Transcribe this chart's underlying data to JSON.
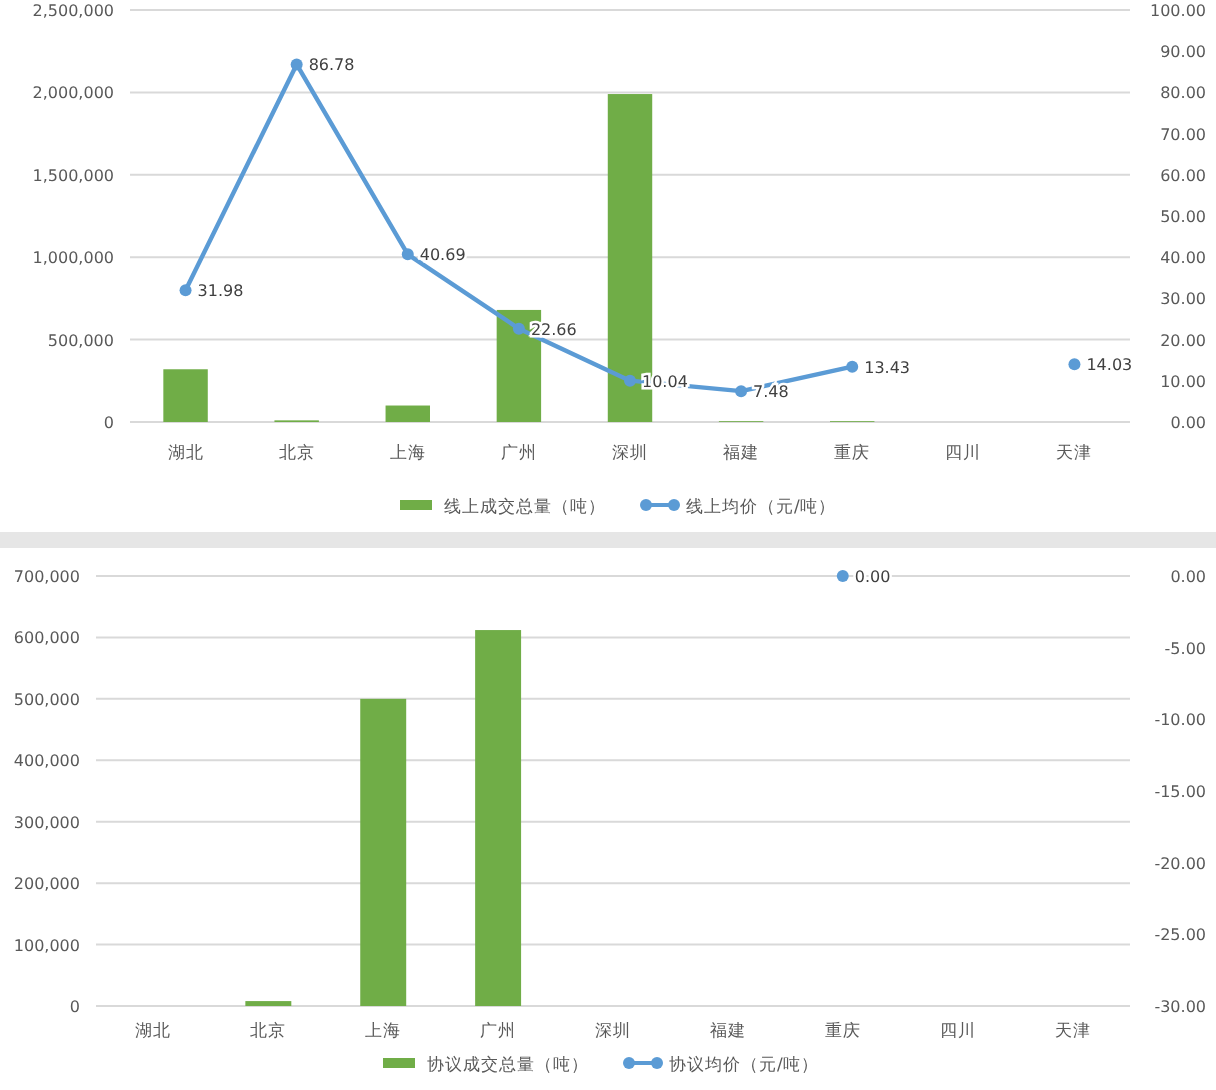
{
  "chart_data": [
    {
      "type": "bar",
      "categories": [
        "湖北",
        "北京",
        "上海",
        "广州",
        "深圳",
        "福建",
        "重庆",
        "四川",
        "天津"
      ],
      "series": [
        {
          "name": "线上成交总量（吨）",
          "color": "#70ad47",
          "values": [
            320000,
            10000,
            100000,
            680000,
            1990000,
            5000,
            5000,
            0,
            0
          ]
        },
        {
          "name": "线上均价（元/吨）",
          "type": "line",
          "axis": "y2",
          "color": "#5b9bd5",
          "values": [
            31.98,
            86.78,
            40.69,
            22.66,
            10.04,
            7.48,
            13.43,
            null,
            14.03
          ],
          "value_labels": [
            "31.98",
            "86.78",
            "40.69",
            "22.66",
            "10.04",
            "7.48",
            "13.43",
            null,
            "14.03"
          ]
        }
      ],
      "ylim": [
        0,
        2500000
      ],
      "yticks": [
        {
          "value": 0,
          "label": "0"
        },
        {
          "value": 500000,
          "label": "500,000"
        },
        {
          "value": 1000000,
          "label": "1,000,000"
        },
        {
          "value": 1500000,
          "label": "1,500,000"
        },
        {
          "value": 2000000,
          "label": "2,000,000"
        },
        {
          "value": 2500000,
          "label": "2,500,000"
        }
      ],
      "y2lim": [
        0,
        100
      ],
      "y2ticks": [
        {
          "value": 0,
          "label": "0.00"
        },
        {
          "value": 10,
          "label": "10.00"
        },
        {
          "value": 20,
          "label": "20.00"
        },
        {
          "value": 30,
          "label": "30.00"
        },
        {
          "value": 40,
          "label": "40.00"
        },
        {
          "value": 50,
          "label": "50.00"
        },
        {
          "value": 60,
          "label": "60.00"
        },
        {
          "value": 70,
          "label": "70.00"
        },
        {
          "value": 80,
          "label": "80.00"
        },
        {
          "value": 90,
          "label": "90.00"
        },
        {
          "value": 100,
          "label": "100.00"
        }
      ],
      "grid": "y",
      "legend": "bottom",
      "marker": "circle"
    },
    {
      "type": "bar",
      "categories": [
        "湖北",
        "北京",
        "上海",
        "广州",
        "深圳",
        "福建",
        "重庆",
        "四川",
        "天津"
      ],
      "series": [
        {
          "name": "协议成交总量（吨）",
          "color": "#70ad47",
          "values": [
            0,
            8000,
            500000,
            612000,
            0,
            0,
            0,
            0,
            0
          ]
        },
        {
          "name": "协议均价（元/吨）",
          "type": "line",
          "axis": "y2",
          "color": "#5b9bd5",
          "values": [
            null,
            null,
            null,
            null,
            null,
            null,
            0,
            null,
            null
          ],
          "value_labels": [
            null,
            null,
            null,
            null,
            null,
            null,
            "0.00",
            null,
            null
          ]
        }
      ],
      "ylim": [
        0,
        700000
      ],
      "yticks": [
        {
          "value": 0,
          "label": "0"
        },
        {
          "value": 100000,
          "label": "100,000"
        },
        {
          "value": 200000,
          "label": "200,000"
        },
        {
          "value": 300000,
          "label": "300,000"
        },
        {
          "value": 400000,
          "label": "400,000"
        },
        {
          "value": 500000,
          "label": "500,000"
        },
        {
          "value": 600000,
          "label": "600,000"
        },
        {
          "value": 700000,
          "label": "700,000"
        }
      ],
      "y2lim": [
        -30,
        0
      ],
      "y2ticks": [
        {
          "value": -30,
          "label": "-30.00"
        },
        {
          "value": -25,
          "label": "-25.00"
        },
        {
          "value": -20,
          "label": "-20.00"
        },
        {
          "value": -15,
          "label": "-15.00"
        },
        {
          "value": -10,
          "label": "-10.00"
        },
        {
          "value": -5,
          "label": "-5.00"
        },
        {
          "value": 0,
          "label": "0.00"
        }
      ],
      "grid": "y",
      "legend": "bottom",
      "marker": "circle"
    }
  ]
}
